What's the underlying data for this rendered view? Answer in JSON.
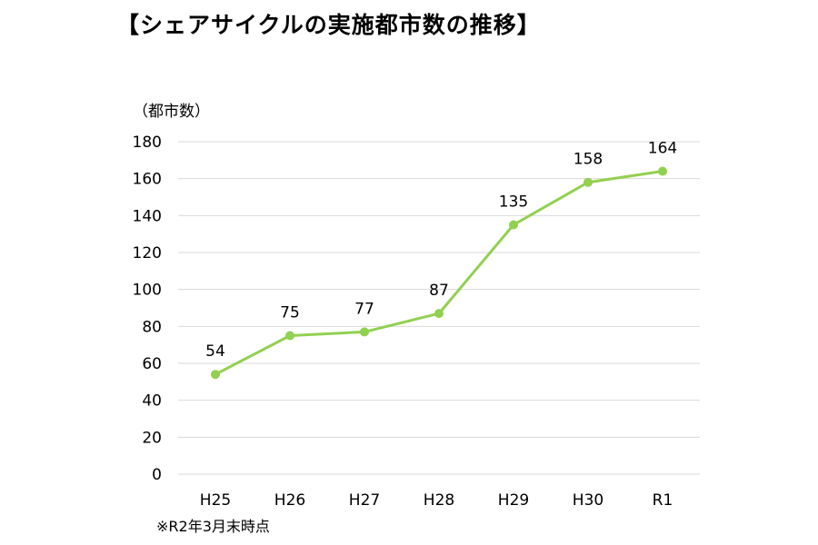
{
  "title": "【シェアサイクルの実施都市数の推移】",
  "note": "※R2年3月末時点",
  "colors": {
    "series": "#92d050",
    "grid": "#d9d9d9"
  },
  "chart_data": {
    "type": "line",
    "ylabel": "（都市数）",
    "ylim": [
      0,
      180
    ],
    "yticks": [
      0,
      20,
      40,
      60,
      80,
      100,
      120,
      140,
      160,
      180
    ],
    "grid": true,
    "categories": [
      "H25",
      "H26",
      "H27",
      "H28",
      "H29",
      "H30",
      "R1"
    ],
    "series": [
      {
        "values": [
          54,
          75,
          77,
          87,
          135,
          158,
          164
        ]
      }
    ],
    "data_labels": true
  }
}
